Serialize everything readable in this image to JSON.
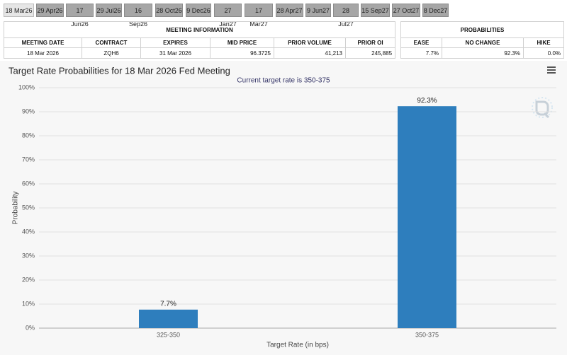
{
  "tabs": [
    "18 Mar26",
    "29 Apr26",
    "17 Jun26",
    "29 Jul26",
    "16 Sep26",
    "28 Oct26",
    "9 Dec26",
    "27 Jan27",
    "17 Mar27",
    "28 Apr27",
    "9 Jun27",
    "28 Jul27",
    "15 Sep27",
    "27 Oct27",
    "8 Dec27"
  ],
  "meeting_table": {
    "title": "MEETING INFORMATION",
    "headers": [
      "MEETING DATE",
      "CONTRACT",
      "EXPIRES",
      "MID PRICE",
      "PRIOR VOLUME",
      "PRIOR OI"
    ],
    "rows": [
      [
        "18 Mar 2026",
        "ZQH6",
        "31 Mar 2026",
        "96.3725",
        "41,213",
        "245,885"
      ]
    ]
  },
  "probabilities_table": {
    "title": "PROBABILITIES",
    "headers": [
      "EASE",
      "NO CHANGE",
      "HIKE"
    ],
    "rows": [
      [
        "7.7%",
        "92.3%",
        "0.0%"
      ]
    ]
  },
  "chart_data": {
    "type": "bar",
    "title": "Target Rate Probabilities for 18 Mar 2026 Fed Meeting",
    "subtitle": "Current target rate is 350-375",
    "x_label": "Target Rate (in bps)",
    "y_label": "Probability",
    "categories": [
      "325-350",
      "350-375"
    ],
    "values": [
      7.7,
      92.3
    ],
    "value_labels": [
      "7.7%",
      "92.3%"
    ],
    "color": "#2e7ebd",
    "ylim": [
      0,
      100
    ],
    "yticks": [
      {
        "value": 0,
        "label": "0%"
      },
      {
        "value": 10,
        "label": "10%"
      },
      {
        "value": 20,
        "label": "20%"
      },
      {
        "value": 30,
        "label": "30%"
      },
      {
        "value": 40,
        "label": "40%"
      },
      {
        "value": 50,
        "label": "50%"
      },
      {
        "value": 60,
        "label": "60%"
      },
      {
        "value": 70,
        "label": "70%"
      },
      {
        "value": 80,
        "label": "80%"
      },
      {
        "value": 90,
        "label": "90%"
      },
      {
        "value": 100,
        "label": "100%"
      }
    ],
    "grid": true
  }
}
